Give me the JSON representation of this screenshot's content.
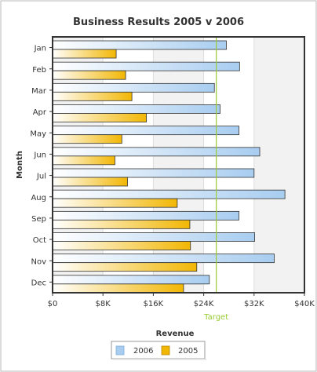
{
  "chart_data": {
    "type": "bar",
    "orientation": "horizontal",
    "title": "Business Results 2005 v 2006",
    "xlabel": "Revenue",
    "ylabel": "Month",
    "categories": [
      "Jan",
      "Feb",
      "Mar",
      "Apr",
      "May",
      "Jun",
      "Jul",
      "Aug",
      "Sep",
      "Oct",
      "Nov",
      "Dec"
    ],
    "series": [
      {
        "name": "2006",
        "values": [
          27600,
          29700,
          25700,
          26600,
          29600,
          32900,
          32000,
          36900,
          29600,
          32100,
          35200,
          24900
        ],
        "color": "#a8cdf0"
      },
      {
        "name": "2005",
        "values": [
          10100,
          11600,
          12600,
          14900,
          11000,
          9900,
          11900,
          19800,
          21800,
          21900,
          22900,
          20800
        ],
        "color": "#f2b705"
      }
    ],
    "xlim": [
      0,
      40000
    ],
    "x_ticks": [
      "$0",
      "$8K",
      "$16K",
      "$24K",
      "$32K",
      "$40K"
    ],
    "x_tick_values": [
      0,
      8000,
      16000,
      24000,
      32000,
      40000
    ],
    "target": {
      "label": "Target",
      "value": 26000,
      "color": "#99cc33"
    },
    "grid": true,
    "legend_position": "bottom"
  }
}
